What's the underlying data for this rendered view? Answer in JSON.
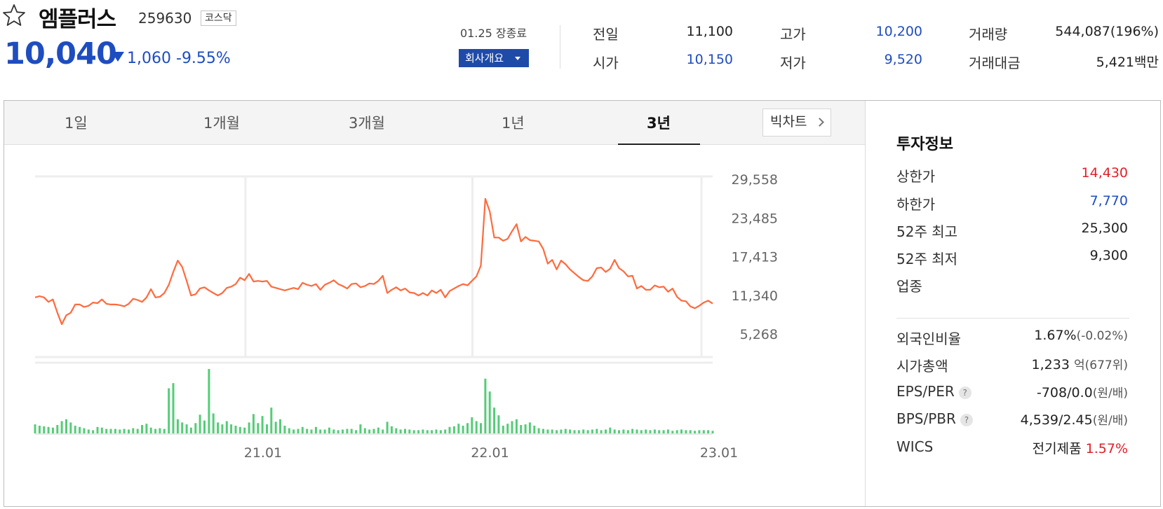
{
  "header": {
    "name": "엠플러스",
    "code": "259630",
    "market": "코스닥",
    "price": "10,040",
    "change": "1,060",
    "change_pct": "-9.55%",
    "close_date": "01.25 장종료",
    "company_button": "회사개요",
    "quotes": {
      "prev_label": "전일",
      "prev_value": "11,100",
      "open_label": "시가",
      "open_value": "10,150",
      "high_label": "고가",
      "high_value": "10,200",
      "low_label": "저가",
      "low_value": "9,520",
      "volume_label": "거래량",
      "volume_value": "544,087(196%)",
      "amount_label": "거래대금",
      "amount_value": "5,421",
      "amount_unit": "백만"
    },
    "colors": {
      "down": "#1e4dbf",
      "up": "#e0202a"
    }
  },
  "tabs": [
    "1일",
    "1개월",
    "3개월",
    "1년",
    "3년"
  ],
  "active_tab": "3년",
  "bigchart_button": "빅차트",
  "invest": {
    "title": "투자정보",
    "upper_limit_label": "상한가",
    "upper_limit": "14,430",
    "lower_limit_label": "하한가",
    "lower_limit": "7,770",
    "high52_label": "52주 최고",
    "high52": "25,300",
    "low52_label": "52주 최저",
    "low52": "9,300",
    "industry_label": "업종",
    "foreign_label": "외국인비율",
    "foreign_value": "1.67%",
    "foreign_change": "(-0.02%)",
    "mcap_label": "시가총액",
    "mcap_value": "1,233",
    "mcap_unit": "억",
    "mcap_rank": "(677위)",
    "eps_label": "EPS/PER",
    "eps_value": "-708/0.0",
    "eps_unit": "(원/배)",
    "bps_label": "BPS/PBR",
    "bps_value": "4,539/2.45",
    "bps_unit": "(원/배)",
    "wics_label": "WICS",
    "wics_value": "전기제품",
    "wics_pct": "1.57%"
  },
  "chart_data": {
    "type": "line",
    "period": "3년",
    "yticks": [
      29558,
      23485,
      17413,
      11340,
      5268
    ],
    "ylim": [
      5268,
      29558
    ],
    "xticks": [
      "21.01",
      "22.01",
      "23.01"
    ],
    "line_color": "#ff6a3d",
    "volume_color": "#55cc77",
    "series": [
      {
        "values": [
          11000,
          11200,
          11000,
          10300,
          10700,
          8600,
          6800,
          8200,
          8600,
          9900,
          9900,
          9500,
          9700,
          10200,
          10100,
          10700,
          10000,
          9900,
          9900,
          9800,
          9600,
          10000,
          10800,
          10600,
          10300,
          11000,
          12300,
          11000,
          11100,
          11700,
          13000,
          15000,
          16800,
          15800,
          13600,
          11300,
          11500,
          12400,
          12600,
          12100,
          11700,
          11300,
          11700,
          12500,
          12700,
          13100,
          14100,
          13700,
          14700,
          13500,
          13600,
          13500,
          13600,
          12700,
          12500,
          12300,
          12100,
          12300,
          12500,
          12300,
          13300,
          13000,
          12800,
          13100,
          12200,
          13000,
          13300,
          13700,
          13100,
          12800,
          12400,
          13100,
          13200,
          12600,
          12800,
          13200,
          13100,
          13600,
          14400,
          11700,
          12200,
          12600,
          12100,
          12400,
          11800,
          11700,
          11300,
          11700,
          11300,
          12100,
          11700,
          12200,
          11000,
          12000,
          12400,
          12800,
          13100,
          12900,
          13600,
          14300,
          16000,
          26500,
          24500,
          20400,
          20400,
          19900,
          20200,
          21400,
          22500,
          19800,
          20500,
          20000,
          19900,
          19800,
          18600,
          16300,
          16900,
          15400,
          16800,
          16200,
          15400,
          14800,
          14200,
          13700,
          13600,
          14300,
          15600,
          15700,
          15000,
          15500,
          16900,
          15600,
          15100,
          14300,
          14400,
          12400,
          12800,
          12200,
          12200,
          12900,
          12600,
          12700,
          11900,
          12400,
          11100,
          10500,
          10400,
          9600,
          9300,
          9700,
          10200,
          10500,
          10040
        ]
      }
    ],
    "volume": [
      0.14,
      0.12,
      0.11,
      0.1,
      0.09,
      0.13,
      0.19,
      0.22,
      0.17,
      0.12,
      0.1,
      0.08,
      0.06,
      0.05,
      0.1,
      0.09,
      0.07,
      0.07,
      0.07,
      0.06,
      0.07,
      0.06,
      0.08,
      0.07,
      0.13,
      0.15,
      0.09,
      0.07,
      0.08,
      0.07,
      0.7,
      0.78,
      0.22,
      0.17,
      0.14,
      0.09,
      0.16,
      0.29,
      0.2,
      1.0,
      0.31,
      0.17,
      0.14,
      0.19,
      0.14,
      0.12,
      0.1,
      0.09,
      0.17,
      0.3,
      0.16,
      0.27,
      0.14,
      0.4,
      0.18,
      0.22,
      0.12,
      0.08,
      0.06,
      0.07,
      0.1,
      0.07,
      0.06,
      0.1,
      0.06,
      0.06,
      0.09,
      0.06,
      0.05,
      0.06,
      0.07,
      0.07,
      0.05,
      0.14,
      0.08,
      0.06,
      0.07,
      0.09,
      0.06,
      0.18,
      0.11,
      0.08,
      0.06,
      0.07,
      0.06,
      0.05,
      0.05,
      0.06,
      0.05,
      0.05,
      0.06,
      0.05,
      0.06,
      0.1,
      0.11,
      0.15,
      0.12,
      0.16,
      0.25,
      0.19,
      0.16,
      0.85,
      0.65,
      0.4,
      0.28,
      0.12,
      0.15,
      0.19,
      0.22,
      0.13,
      0.14,
      0.17,
      0.12,
      0.08,
      0.07,
      0.06,
      0.06,
      0.05,
      0.06,
      0.07,
      0.06,
      0.05,
      0.05,
      0.06,
      0.05,
      0.06,
      0.07,
      0.05,
      0.06,
      0.09,
      0.06,
      0.05,
      0.06,
      0.05,
      0.07,
      0.06,
      0.05,
      0.06,
      0.05,
      0.06,
      0.05,
      0.05,
      0.06,
      0.04,
      0.05,
      0.06,
      0.05,
      0.05,
      0.04,
      0.05,
      0.05,
      0.05,
      0.04
    ]
  }
}
